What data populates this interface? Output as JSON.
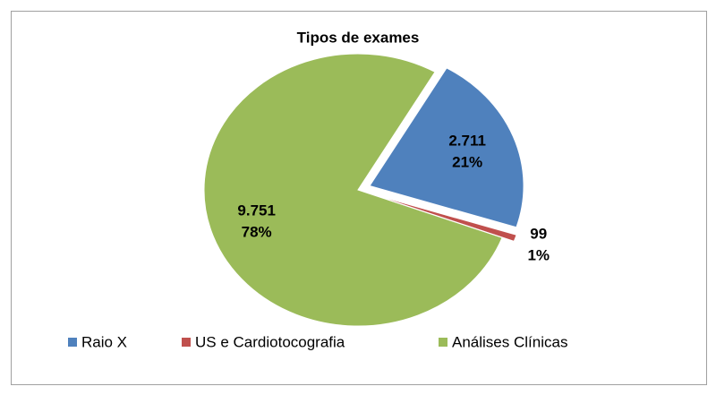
{
  "chart_data": {
    "type": "pie",
    "title": "Tipos de exames",
    "categories": [
      "Raio X",
      "US e Cardiotocografia",
      "Análises Clínicas"
    ],
    "values": [
      2711,
      99,
      9751
    ],
    "value_labels": [
      "2.711",
      "99",
      "9.751"
    ],
    "percents": [
      21,
      1,
      78
    ],
    "percent_labels": [
      "21%",
      "1%",
      "78%"
    ],
    "colors": [
      "#4f81bd",
      "#c0504d",
      "#9bbb59"
    ],
    "legend": "bottom"
  }
}
